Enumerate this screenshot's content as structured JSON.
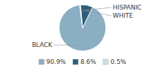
{
  "chart_data": {
    "type": "pie",
    "categories": [
      "BLACK",
      "WHITE",
      "HISPANIC"
    ],
    "values": [
      90.9,
      8.6,
      0.5
    ],
    "value_labels": [
      "90.9%",
      "8.6%",
      "0.5%"
    ],
    "colors": [
      "#8aafc2",
      "#2d5f7c",
      "#ccdce6"
    ],
    "legend": "bottom"
  }
}
